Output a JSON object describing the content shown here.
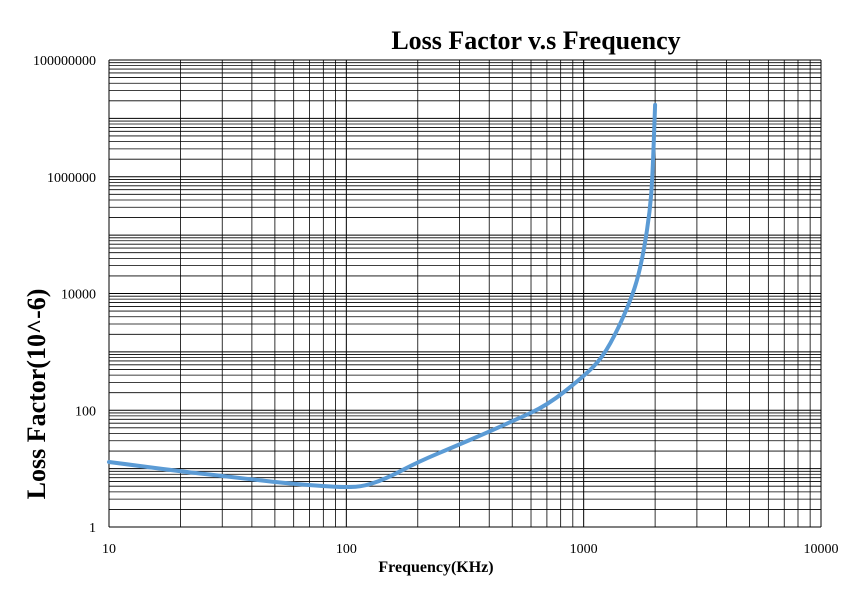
{
  "chart_data": {
    "type": "line",
    "title": "Loss Factor v.s Frequency",
    "xlabel": "Frequency(KHz)",
    "ylabel": "Loss Factor(10^-6)",
    "x_scale": "log",
    "y_scale": "log",
    "xlim": [
      10,
      10000
    ],
    "ylim": [
      1,
      100000000
    ],
    "grid": true,
    "x_ticks": [
      "10",
      "100",
      "1000",
      "10000"
    ],
    "y_ticks": [
      "1",
      "100",
      "10000",
      "1000000",
      "100000000"
    ],
    "series": [
      {
        "color": "#5b9bd5",
        "points": [
          [
            10,
            13
          ],
          [
            20,
            9
          ],
          [
            30,
            7.5
          ],
          [
            40,
            6.5
          ],
          [
            60,
            5.5
          ],
          [
            80,
            5.0
          ],
          [
            100,
            4.8
          ],
          [
            120,
            5.0
          ],
          [
            150,
            7.0
          ],
          [
            200,
            13
          ],
          [
            300,
            26
          ],
          [
            400,
            43
          ],
          [
            500,
            65
          ],
          [
            700,
            120
          ],
          [
            1000,
            380
          ],
          [
            1200,
            800
          ],
          [
            1400,
            2500
          ],
          [
            1600,
            9000
          ],
          [
            1700,
            20000
          ],
          [
            1800,
            60000
          ],
          [
            1900,
            250000
          ],
          [
            1950,
            1000000
          ],
          [
            2000,
            17000000
          ]
        ]
      }
    ]
  },
  "colors": {
    "series": "#5b9bd5",
    "grid": "#000000"
  }
}
